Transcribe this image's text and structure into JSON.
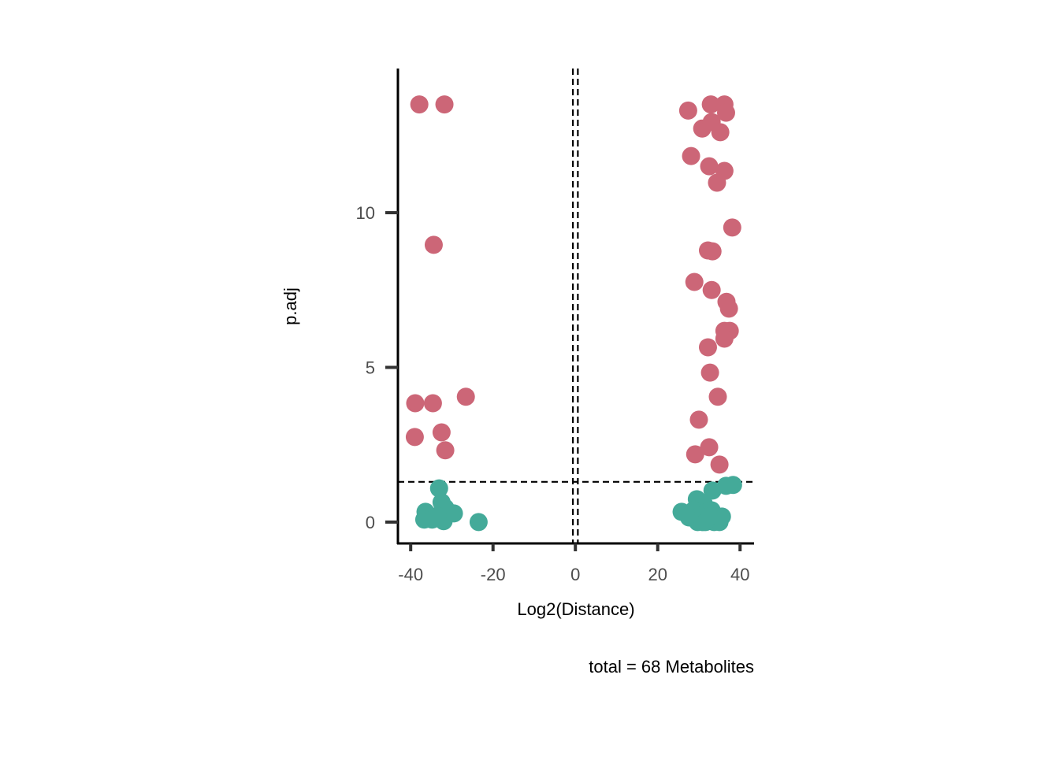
{
  "chart_data": {
    "type": "scatter",
    "title": "",
    "xlabel": "Log2(Distance)",
    "ylabel": "p.adj",
    "caption": "total = 68 Metabolites",
    "xlim": [
      -43.1,
      43.4
    ],
    "ylim": [
      -0.69,
      14.66
    ],
    "x_ticks": [
      -40,
      -20,
      0,
      20,
      40
    ],
    "x_tick_labels": [
      "-40",
      "-20",
      "0",
      "20",
      "40"
    ],
    "y_ticks": [
      0,
      5,
      10
    ],
    "y_tick_labels": [
      "0",
      "5",
      "10"
    ],
    "grid": false,
    "legend": "none",
    "reference_lines": {
      "vertical": [
        -0.6,
        0.6
      ],
      "horizontal": [
        1.3
      ]
    },
    "colors": {
      "significant": "#CC6677",
      "not_significant": "#44AA99"
    },
    "series": [
      {
        "color": "#CC6677",
        "points": [
          [
            -37.9,
            13.5
          ],
          [
            -31.8,
            13.5
          ],
          [
            -34.4,
            8.96
          ],
          [
            -38.9,
            3.84
          ],
          [
            -34.6,
            3.84
          ],
          [
            -26.6,
            4.05
          ],
          [
            -39.0,
            2.75
          ],
          [
            -32.5,
            2.9
          ],
          [
            -31.6,
            2.32
          ],
          [
            27.4,
            13.3
          ],
          [
            32.9,
            13.5
          ],
          [
            36.2,
            13.5
          ],
          [
            36.6,
            13.23
          ],
          [
            30.8,
            12.72
          ],
          [
            33.1,
            12.93
          ],
          [
            35.2,
            12.6
          ],
          [
            28.1,
            11.83
          ],
          [
            32.5,
            11.5
          ],
          [
            36.2,
            11.35
          ],
          [
            34.4,
            10.97
          ],
          [
            38.1,
            9.52
          ],
          [
            32.2,
            8.78
          ],
          [
            33.3,
            8.75
          ],
          [
            28.9,
            7.76
          ],
          [
            33.1,
            7.5
          ],
          [
            36.7,
            7.12
          ],
          [
            37.3,
            6.9
          ],
          [
            36.2,
            6.18
          ],
          [
            37.5,
            6.18
          ],
          [
            36.2,
            5.93
          ],
          [
            32.2,
            5.65
          ],
          [
            32.7,
            4.83
          ],
          [
            34.6,
            4.05
          ],
          [
            30.0,
            3.31
          ],
          [
            29.1,
            2.19
          ],
          [
            32.5,
            2.42
          ],
          [
            35.0,
            1.86
          ]
        ]
      },
      {
        "color": "#44AA99",
        "points": [
          [
            -33.1,
            1.09
          ],
          [
            -36.4,
            0.33
          ],
          [
            -36.7,
            0.08
          ],
          [
            -32.5,
            0.64
          ],
          [
            -31.6,
            0.46
          ],
          [
            -29.5,
            0.28
          ],
          [
            -32.0,
            0.03
          ],
          [
            -33.5,
            0.2
          ],
          [
            -34.8,
            0.08
          ],
          [
            -23.5,
            0.0
          ],
          [
            38.3,
            1.2
          ],
          [
            36.6,
            1.17
          ],
          [
            33.3,
            1.02
          ],
          [
            29.5,
            0.74
          ],
          [
            31.2,
            0.59
          ],
          [
            25.8,
            0.33
          ],
          [
            27.6,
            0.15
          ],
          [
            29.7,
            0.0
          ],
          [
            31.0,
            0.0
          ],
          [
            32.5,
            0.08
          ],
          [
            33.7,
            0.0
          ],
          [
            35.0,
            0.0
          ],
          [
            35.6,
            0.18
          ],
          [
            28.7,
            0.38
          ],
          [
            32.0,
            0.33
          ],
          [
            33.1,
            0.38
          ],
          [
            30.2,
            0.2
          ],
          [
            34.4,
            0.08
          ],
          [
            31.6,
            0.0
          ],
          [
            32.7,
            0.2
          ],
          [
            26.8,
            0.28
          ]
        ]
      }
    ]
  }
}
